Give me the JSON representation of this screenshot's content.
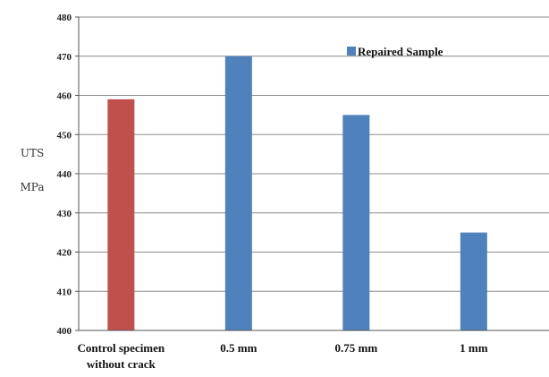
{
  "chart_data": {
    "type": "bar",
    "categories": [
      "Control specimen without crack",
      "0.5 mm",
      "0.75 mm",
      "1 mm"
    ],
    "category_lines": [
      [
        "Control specimen",
        "without crack"
      ],
      [
        "0.5 mm"
      ],
      [
        "0.75 mm"
      ],
      [
        "1 mm"
      ]
    ],
    "values": [
      459,
      470,
      455,
      425
    ],
    "bar_colors": [
      "#c0504d",
      "#4f81bd",
      "#4f81bd",
      "#4f81bd"
    ],
    "series": [
      {
        "name": "Repaired Sample",
        "color": "#4f81bd"
      }
    ],
    "ylabel_lines": [
      "UTS",
      "MPa"
    ],
    "ylim": [
      400,
      480
    ],
    "yticks": [
      400,
      410,
      420,
      430,
      440,
      450,
      460,
      470,
      480
    ],
    "grid": true,
    "legend_position": "top-right"
  }
}
